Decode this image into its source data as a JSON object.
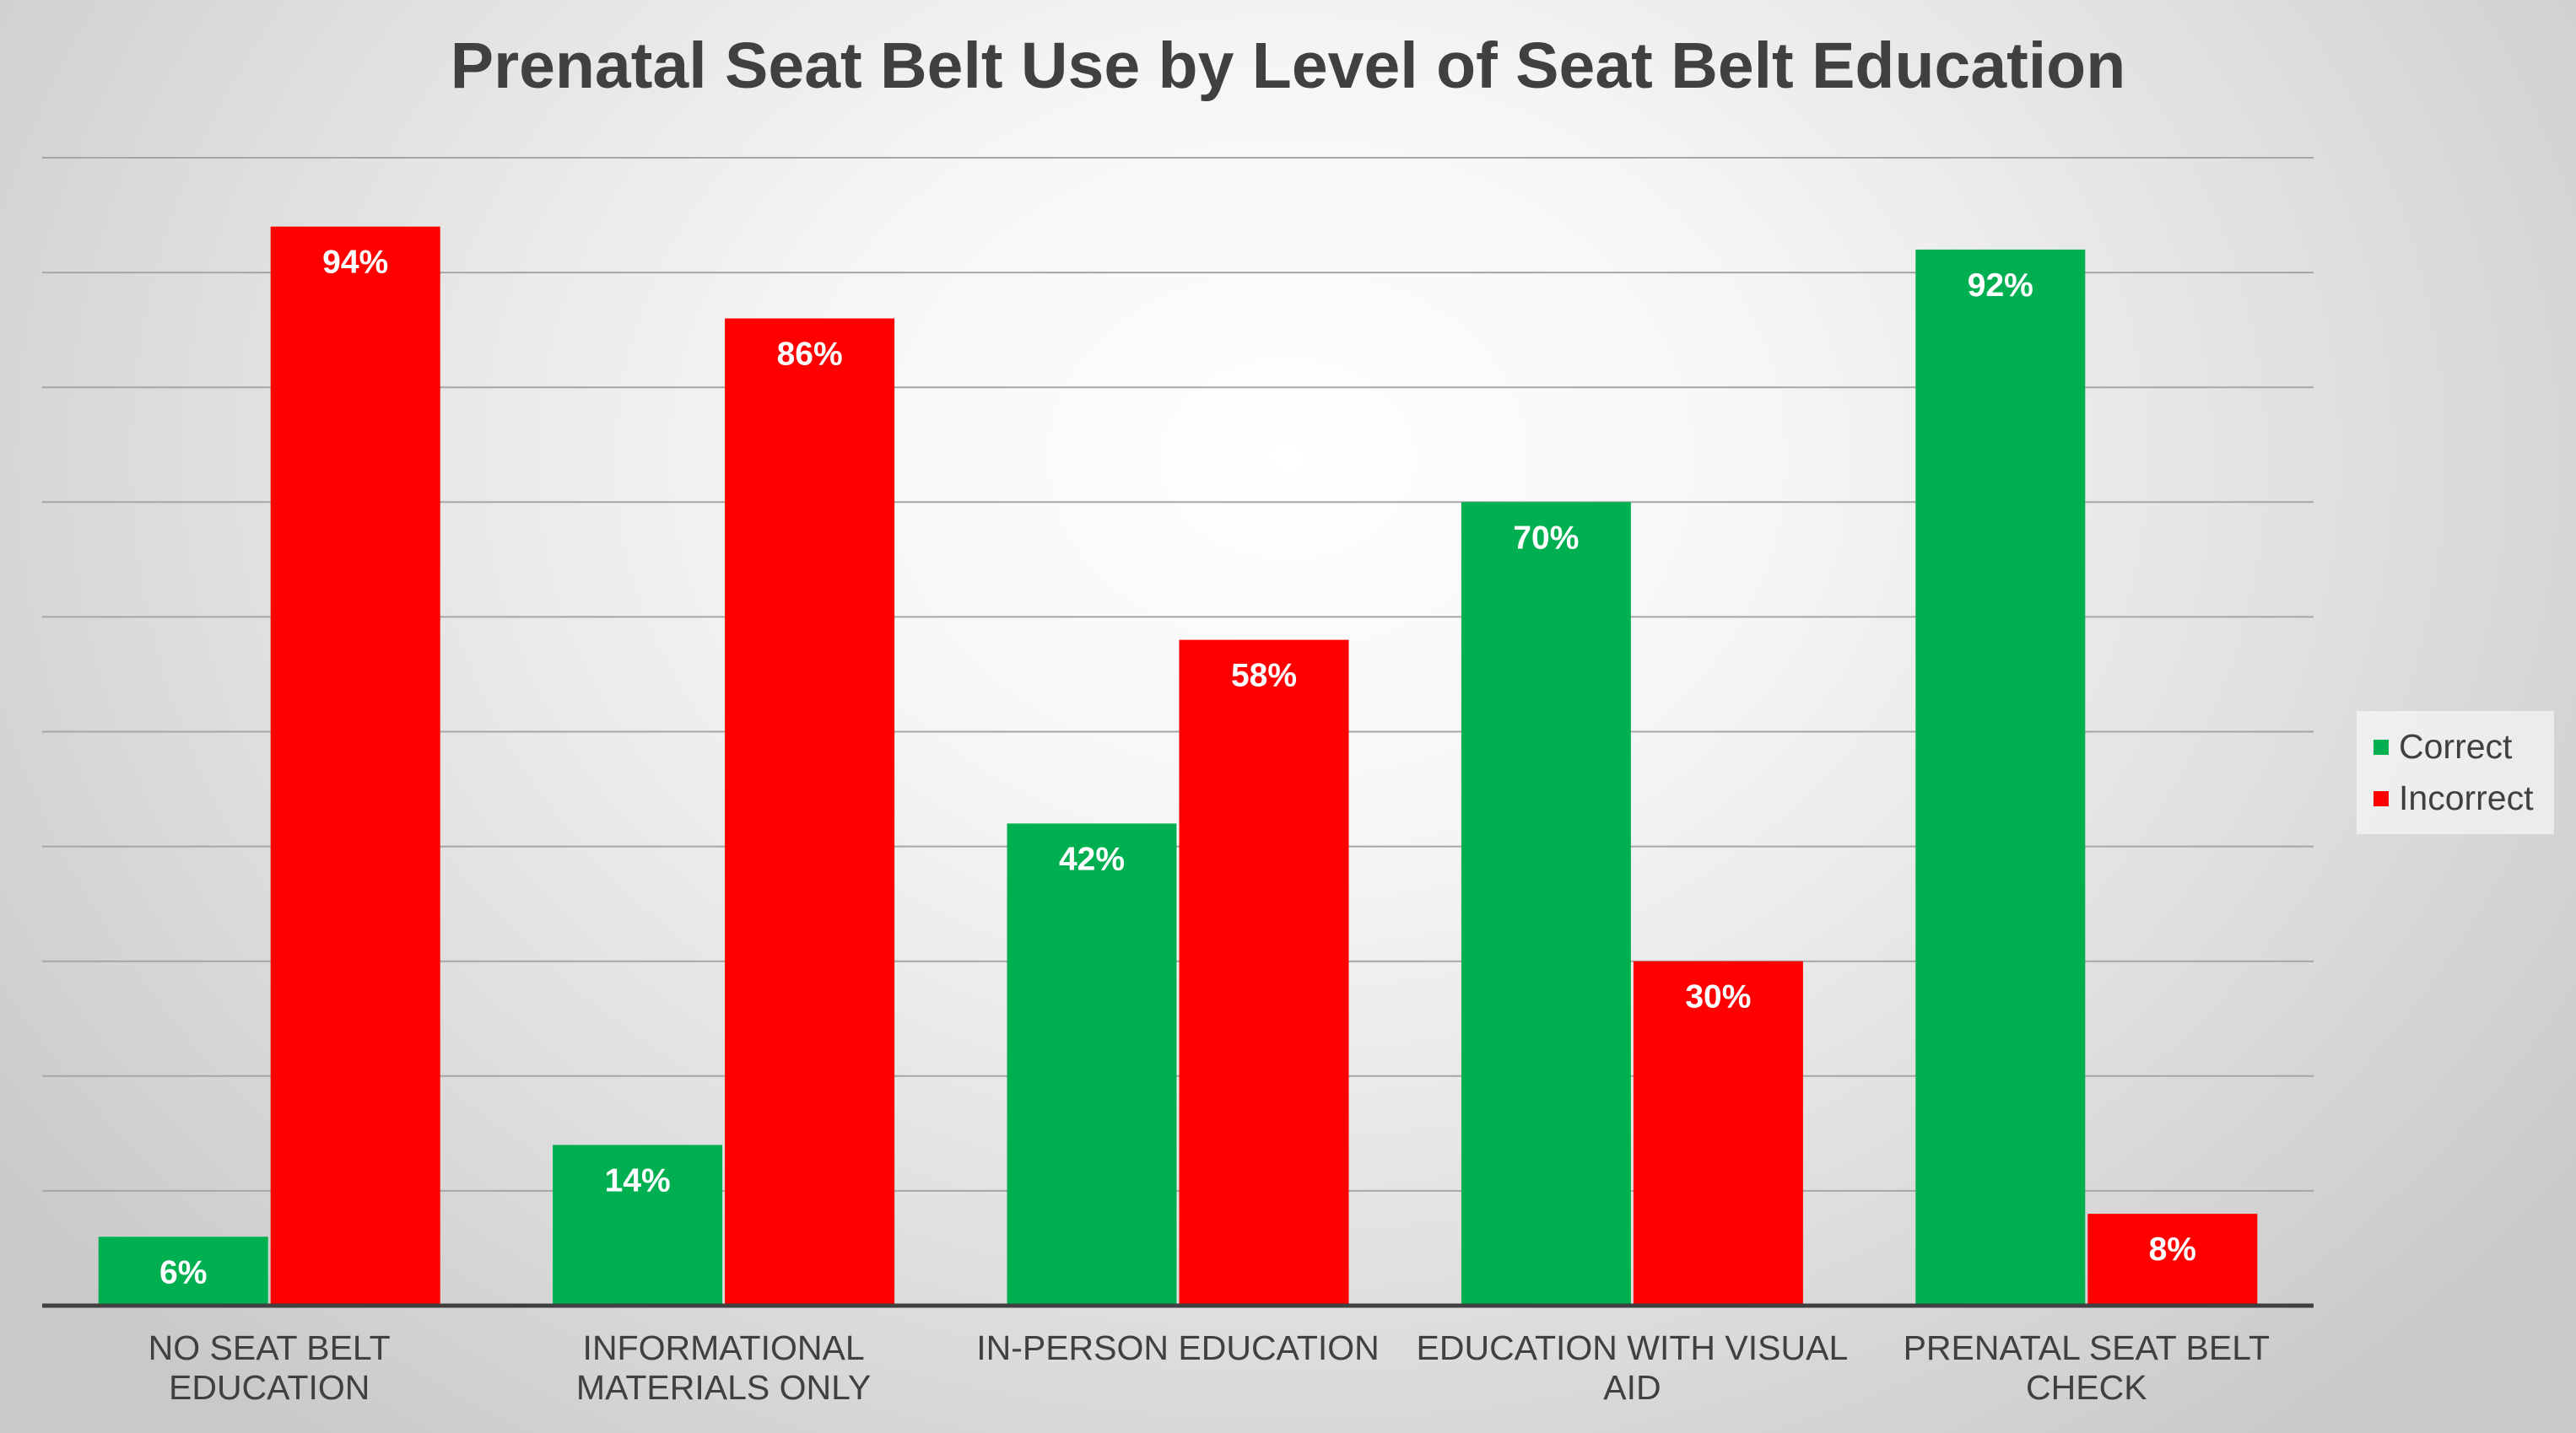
{
  "chart_data": {
    "type": "bar",
    "title": "Prenatal Seat Belt Use by Level of Seat Belt Education",
    "categories": [
      [
        "NO SEAT BELT",
        "EDUCATION"
      ],
      [
        "INFORMATIONAL",
        "MATERIALS ONLY"
      ],
      [
        "IN-PERSON EDUCATION"
      ],
      [
        "EDUCATION WITH VISUAL",
        "AID"
      ],
      [
        "PRENATAL SEAT BELT",
        "CHECK"
      ]
    ],
    "series": [
      {
        "name": "Correct",
        "color": "#00b050",
        "values": [
          6,
          14,
          42,
          70,
          92
        ],
        "labels": [
          "6%",
          "14%",
          "42%",
          "70%",
          "92%"
        ]
      },
      {
        "name": "Incorrect",
        "color": "#ff0000",
        "values": [
          94,
          86,
          58,
          30,
          8
        ],
        "labels": [
          "94%",
          "86%",
          "58%",
          "30%",
          "8%"
        ]
      }
    ],
    "ylim": [
      0,
      100
    ],
    "grid": true,
    "y_tick_labels": false,
    "legend": "right",
    "data_labels": "inside-end"
  }
}
